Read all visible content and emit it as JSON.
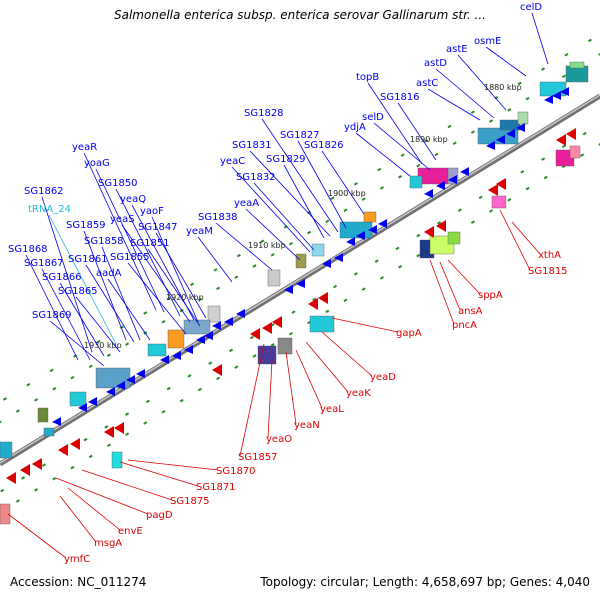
{
  "title": "Salmonella enterica subsp. enterica serovar Gallinarum str. ...",
  "footer": {
    "accession": "Accession: NC_011274",
    "stats": "Topology: circular; Length: 4,658,697 bp; Genes: 4,040"
  },
  "colors": {
    "top_strand": "#0000ee",
    "bottom_strand": "#dd0000",
    "trna": "#22b8d8",
    "backbone": "#8c8c8c",
    "tick": "#2a8a2a"
  },
  "kbp_labels": [
    "1880 kbp",
    "1890 kbp",
    "1900 kbp",
    "1910 kbp",
    "1920 kbp",
    "1930 kbp"
  ],
  "top_genes": [
    "celD",
    "osmE",
    "astE",
    "astD",
    "topB",
    "astC",
    "SG1816",
    "selD",
    "ydjA",
    "SG1828",
    "SG1827",
    "SG1831",
    "SG1826",
    "SG1829",
    "yeaR",
    "yeaC",
    "yoaG",
    "SG1832",
    "SG1850",
    "yeaA",
    "yeaQ",
    "SG1862",
    "yeaS",
    "yaoF",
    "tRNA_24",
    "SG1859",
    "SG1847",
    "SG1838",
    "SG1858",
    "yeaM",
    "SG1851",
    "SG1868",
    "SG1861",
    "SG1855",
    "SG1867",
    "aadA",
    "SG1866",
    "SG1865",
    "SG1869"
  ],
  "bottom_genes": [
    "xthA",
    "SG1815",
    "sppA",
    "ansA",
    "pncA",
    "gapA",
    "yeaD",
    "yeaK",
    "yeaL",
    "yeaN",
    "yeaO",
    "SG1857",
    "SG1870",
    "SG1871",
    "SG1875",
    "pagD",
    "envE",
    "msgA",
    "ymfC"
  ]
}
